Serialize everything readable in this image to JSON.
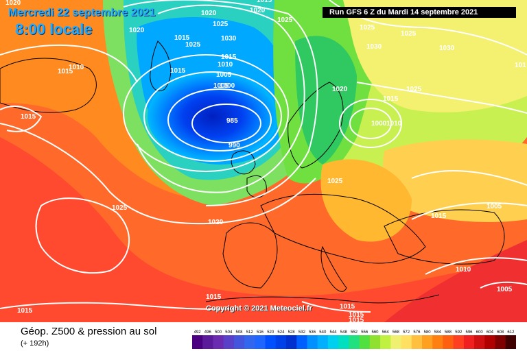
{
  "header": {
    "date": "Mercredi 22 septembre 2021",
    "time": "8:00 locale",
    "run": "Run GFS 6 Z du Mardi 14 septembre 2021"
  },
  "copyright": "Copyright © 2021 Meteociel.fr",
  "legend": {
    "title": "Géop. Z500 & pression au sol",
    "subtitle": "(+ 192h)",
    "scale_values": [
      "492",
      "496",
      "500",
      "504",
      "508",
      "512",
      "516",
      "520",
      "524",
      "528",
      "532",
      "536",
      "540",
      "544",
      "548",
      "552",
      "556",
      "560",
      "564",
      "568",
      "572",
      "576",
      "580",
      "584",
      "588",
      "592",
      "596",
      "600",
      "604",
      "608",
      "612"
    ],
    "scale_colors": [
      "#4b0082",
      "#5a1a9a",
      "#6a2bb0",
      "#5a3fc8",
      "#4455dd",
      "#3366ee",
      "#1f66ff",
      "#0050ff",
      "#0040e8",
      "#0030d0",
      "#0060ff",
      "#0090ff",
      "#00b0ff",
      "#00d0f0",
      "#00e0c0",
      "#20e080",
      "#50e040",
      "#90e030",
      "#c0f040",
      "#f0f070",
      "#ffe060",
      "#ffc040",
      "#ffa020",
      "#ff8010",
      "#ff6010",
      "#ff4020",
      "#f02020",
      "#d01010",
      "#b00000",
      "#800000",
      "#400000"
    ]
  },
  "isobars": {
    "labels": [
      "1020",
      "1020",
      "1015",
      "1010",
      "1015",
      "1015",
      "1015",
      "1025",
      "1020",
      "1020",
      "1015",
      "1025",
      "1030",
      "1015",
      "1010",
      "1005",
      "1005",
      "1000",
      "1025",
      "1025",
      "1025",
      "1030",
      "1030",
      "985",
      "990",
      "1025",
      "1015",
      "1020",
      "1025",
      "1005",
      "1015",
      "1025",
      "1020",
      "1000",
      "1010",
      "1025",
      "1005",
      "1015",
      "1010",
      "1005",
      "1015",
      "1015",
      "1015",
      "1015",
      "101"
    ]
  }
}
